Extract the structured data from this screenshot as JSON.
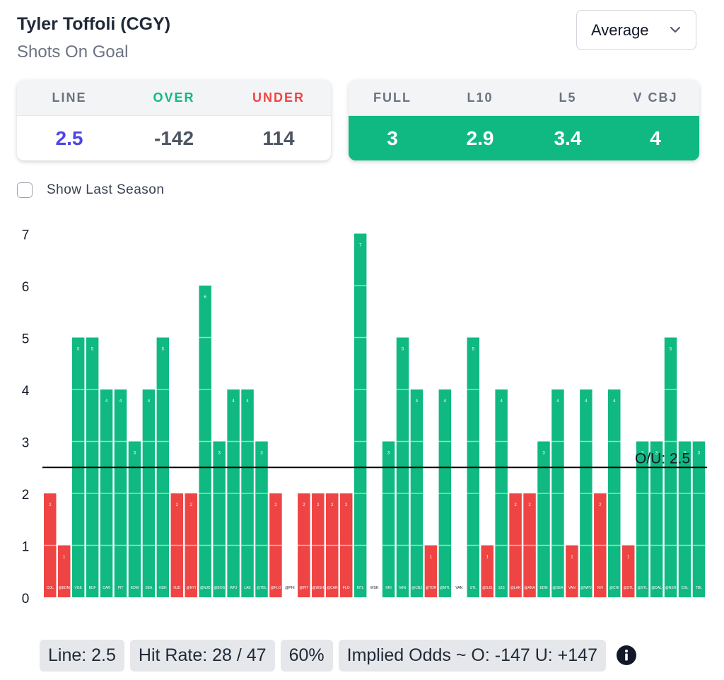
{
  "header": {
    "player": "Tyler Toffoli (CGY)",
    "stat": "Shots On Goal"
  },
  "dropdown": {
    "selected": "Average",
    "icon": "chevron-down-icon"
  },
  "line_card": {
    "headers": [
      "LINE",
      "OVER",
      "UNDER"
    ],
    "values": [
      "2.5",
      "-142",
      "114"
    ],
    "colors": {
      "line": "#4f46e5",
      "over": "#10b981",
      "under": "#ef4444"
    }
  },
  "avg_card": {
    "headers": [
      "FULL",
      "L10",
      "L5",
      "V CBJ"
    ],
    "values": [
      "3",
      "2.9",
      "3.4",
      "4"
    ],
    "color": "#10b981"
  },
  "toggle": {
    "label": "Show Last Season",
    "checked": false
  },
  "chart_data": {
    "type": "bar",
    "ylim": [
      0,
      7
    ],
    "yticks": [
      "0",
      "1",
      "2",
      "3",
      "4",
      "5",
      "6",
      "7"
    ],
    "line": 2.5,
    "line_label": "O/U: 2.5",
    "over_color": "#10b981",
    "under_color": "#ef4444",
    "categories": [
      "COL",
      "@EDM",
      "VGK",
      "BUF",
      "CAR",
      "PIT",
      "EDM",
      "SEA",
      "NSH",
      "NJD",
      "@NYI",
      "@NJD",
      "@BOS",
      "WPJ",
      "LAK",
      "@TBL",
      "@FLO",
      "@PHI",
      "@PIT",
      "@WSH",
      "@CAR",
      "FLO",
      "MTL",
      "WSH",
      "KRI",
      "MIN",
      "@CBJ",
      "@TOR",
      "@MTL",
      "VAN",
      "STL",
      "@SJS",
      "SJS",
      "@LAK",
      "@ANA",
      "EDM",
      "@SEA",
      "VAN",
      "@WPJ",
      "NYI",
      "@CHI",
      "@STL",
      "@STL",
      "@DAL",
      "@NSH",
      "CGL",
      "TBL"
    ],
    "values": [
      2,
      1,
      5,
      5,
      4,
      4,
      3,
      4,
      5,
      2,
      2,
      6,
      3,
      4,
      4,
      3,
      2,
      0,
      2,
      2,
      2,
      2,
      7,
      0,
      3,
      5,
      4,
      1,
      4,
      0,
      5,
      1,
      4,
      2,
      2,
      3,
      4,
      1,
      4,
      2,
      4,
      1,
      3,
      3,
      5,
      3,
      3
    ]
  },
  "footer": {
    "line": "Line: 2.5",
    "hit_rate": "Hit Rate: 28 / 47",
    "percent": "60%",
    "implied_odds": "Implied Odds ~ O: -147 U: +147",
    "info_icon": "info-icon"
  }
}
